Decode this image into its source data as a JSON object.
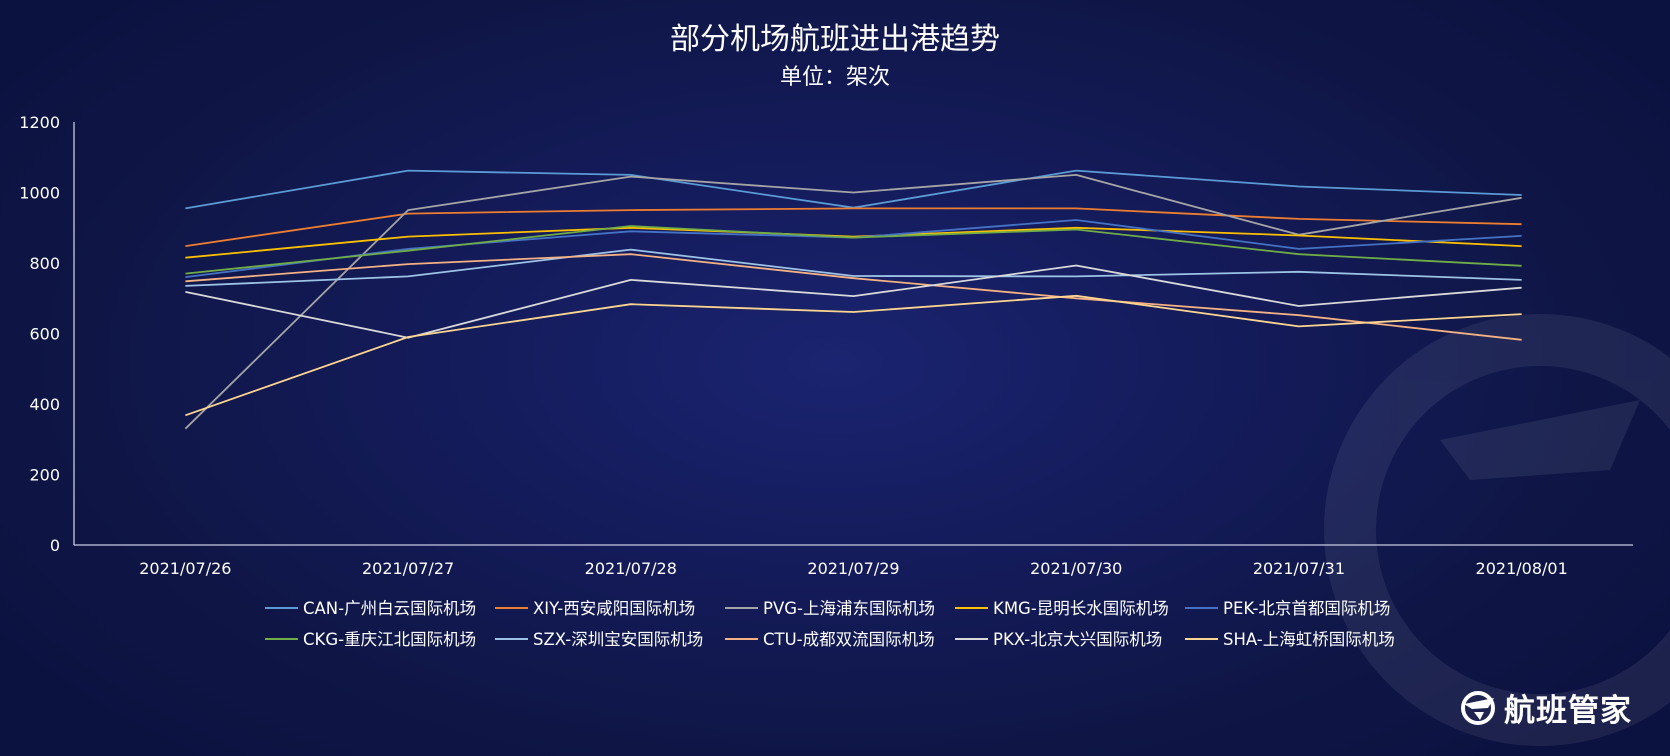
{
  "chart_data": {
    "type": "line",
    "title": "部分机场航班进出港趋势",
    "subtitle": "单位：架次",
    "xlabel": "",
    "ylabel": "",
    "ylim": [
      0,
      1200
    ],
    "y_ticks": [
      "0",
      "200",
      "400",
      "600",
      "800",
      "1000",
      "1200"
    ],
    "categories": [
      "2021/07/26",
      "2021/07/27",
      "2021/07/28",
      "2021/07/29",
      "2021/07/30",
      "2021/07/31",
      "2021/08/01"
    ],
    "grid": false,
    "legend_position": "bottom",
    "series": [
      {
        "name": "CAN-广州白云国际机场",
        "color": "#5b9bd5",
        "values": [
          955,
          1062,
          1050,
          957,
          1062,
          1017,
          993
        ]
      },
      {
        "name": "XIY-西安咸阳国际机场",
        "color": "#ed7d31",
        "values": [
          848,
          940,
          950,
          955,
          955,
          925,
          910
        ]
      },
      {
        "name": "PVG-上海浦东国际机场",
        "color": "#a5a5a5",
        "values": [
          330,
          950,
          1045,
          1000,
          1050,
          880,
          985
        ]
      },
      {
        "name": "KMG-昆明长水国际机场",
        "color": "#ffc000",
        "values": [
          815,
          875,
          900,
          875,
          900,
          878,
          848
        ]
      },
      {
        "name": "PEK-北京首都国际机场",
        "color": "#4472c4",
        "values": [
          760,
          840,
          890,
          872,
          922,
          840,
          877
        ]
      },
      {
        "name": "CKG-重庆江北国际机场",
        "color": "#70ad47",
        "values": [
          770,
          835,
          905,
          872,
          895,
          825,
          792
        ]
      },
      {
        "name": "SZX-深圳宝安国际机场",
        "color": "#9dc3e6",
        "values": [
          735,
          762,
          838,
          763,
          762,
          775,
          752
        ]
      },
      {
        "name": "CTU-成都双流国际机场",
        "color": "#f4b183",
        "values": [
          748,
          797,
          825,
          757,
          700,
          652,
          582
        ]
      },
      {
        "name": "PKX-北京大兴国际机场",
        "color": "#d9d9d9",
        "values": [
          718,
          588,
          752,
          706,
          793,
          678,
          730
        ]
      },
      {
        "name": "SHA-上海虹桥国际机场",
        "color": "#ffd591",
        "values": [
          368,
          590,
          683,
          661,
          707,
          620,
          655
        ]
      }
    ]
  },
  "brand": {
    "name": "航班管家",
    "icon": "airplane-logo-icon"
  }
}
